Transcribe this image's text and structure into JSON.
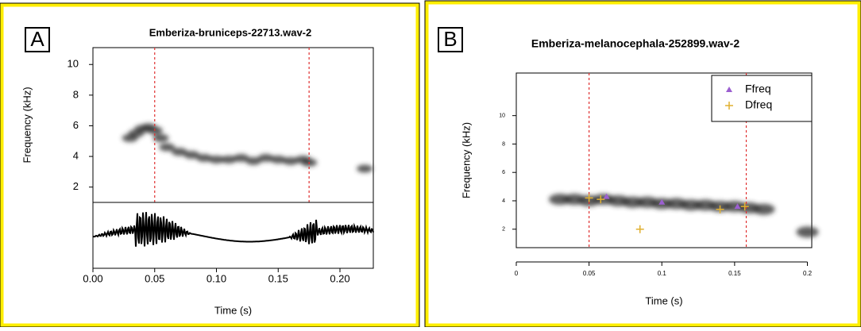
{
  "chart_data": [
    {
      "type": "spectrogram",
      "panel": "A",
      "title": "Emberiza-bruniceps-22713.wav-2",
      "xlabel": "Time (s)",
      "ylabel": "Frequency (kHz)",
      "x": [
        0.03,
        0.035,
        0.04,
        0.045,
        0.05,
        0.055,
        0.06,
        0.07,
        0.08,
        0.09,
        0.1,
        0.11,
        0.12,
        0.13,
        0.14,
        0.15,
        0.16,
        0.17,
        0.175,
        0.22
      ],
      "values": [
        5.2,
        5.5,
        5.8,
        5.9,
        5.7,
        5.2,
        4.6,
        4.3,
        4.1,
        3.9,
        3.8,
        3.8,
        3.9,
        3.7,
        3.9,
        3.8,
        3.7,
        3.8,
        3.6,
        3.2
      ],
      "markers": [
        0.05,
        0.175
      ],
      "xlim": [
        0,
        0.227
      ],
      "ylim": [
        1,
        11.1
      ],
      "xticks": [
        {
          "value": 0,
          "label": "0.00"
        },
        {
          "value": 0.05,
          "label": "0.05"
        },
        {
          "value": 0.1,
          "label": "0.10"
        },
        {
          "value": 0.15,
          "label": "0.15"
        },
        {
          "value": 0.2,
          "label": "0.20"
        }
      ],
      "yticks": [
        2,
        4,
        6,
        8,
        10
      ]
    },
    {
      "type": "spectrogram",
      "panel": "B",
      "title": "Emberiza-melanocephala-252899.wav-2",
      "xlabel": "Time (s)",
      "ylabel": "Frequency (kHz)",
      "x": [
        0.03,
        0.04,
        0.05,
        0.06,
        0.07,
        0.08,
        0.09,
        0.1,
        0.11,
        0.12,
        0.13,
        0.14,
        0.15,
        0.16,
        0.17,
        0.2
      ],
      "values": [
        4.1,
        4.1,
        4.0,
        4.1,
        4.0,
        3.9,
        3.9,
        3.8,
        3.8,
        3.7,
        3.7,
        3.6,
        3.6,
        3.5,
        3.4,
        1.8
      ],
      "markers": [
        0.05,
        0.158
      ],
      "xlim": [
        0,
        0.203
      ],
      "ylim": [
        0.7,
        13
      ],
      "xticks": [
        0,
        0.05,
        0.1,
        0.15,
        0.2
      ],
      "yticks": [
        2,
        4,
        6,
        8,
        10
      ],
      "series": [
        {
          "name": "Ffreq",
          "color": "#9b5fd0",
          "x": [
            0.062,
            0.1,
            0.152
          ],
          "values": [
            4.3,
            3.9,
            3.6
          ]
        },
        {
          "name": "Dfreq",
          "color": "#e0b030",
          "x": [
            0.05,
            0.058,
            0.085,
            0.14,
            0.157
          ],
          "values": [
            4.2,
            4.1,
            2.0,
            3.4,
            3.6
          ]
        }
      ]
    }
  ]
}
